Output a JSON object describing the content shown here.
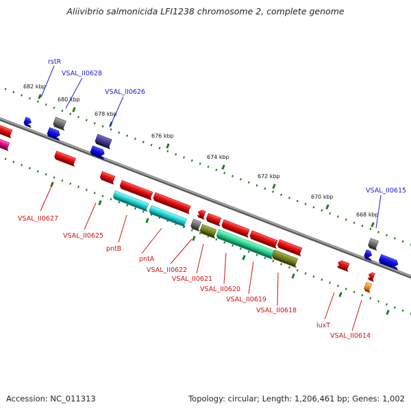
{
  "title": "Aliivibrio salmonicida LFI1238 chromosome 2, complete genome",
  "footer": {
    "accession": "Accession: NC_011313",
    "summary": "Topology: circular; Length: 1,206,461 bp; Genes: 1,002"
  },
  "colors": {
    "backbone": "#888888",
    "forward_label": "#1a1acc",
    "reverse_label": "#cc1111",
    "tick": "#1f7a1f",
    "red": "#ee1111",
    "cyan": "#22dddd",
    "seagreen": "#33dd99",
    "olive": "#7a8a22",
    "gray": "#777777",
    "blue": "#1111ee",
    "purple": "#4a3f99",
    "magenta": "#ee1188",
    "orange": "#ff9922"
  },
  "ticks": [
    "682 kbp",
    "680 kbp",
    "678 kbp",
    "676 kbp",
    "674 kbp",
    "672 kbp",
    "670 kbp",
    "668 kbp"
  ],
  "forward_labels": [
    "rstR",
    "VSAL_II0628",
    "VSAL_II0626",
    "VSAL_II0615"
  ],
  "reverse_labels": [
    "VSAL_II0627",
    "VSAL_II0625",
    "pntB",
    "pntA",
    "VSAL_II0622",
    "VSAL_II0621",
    "VSAL_II0620",
    "VSAL_II0619",
    "VSAL_II0618",
    "luxT",
    "VSAL_II0614"
  ]
}
